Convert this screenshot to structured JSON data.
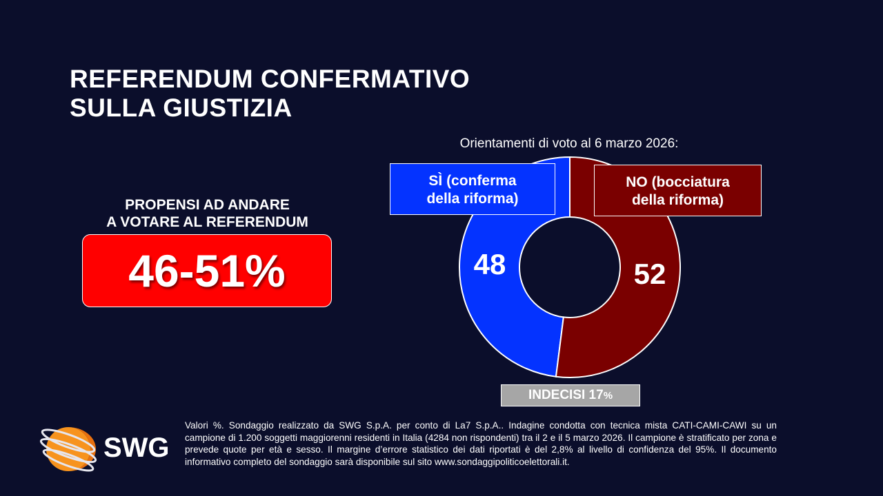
{
  "title": {
    "line1": "REFERENDUM CONFERMATIVO",
    "line2": "SULLA GIUSTIZIA"
  },
  "turnout": {
    "label_line1": "PROPENSI AD ANDARE",
    "label_line2": "A VOTARE AL REFERENDUM",
    "value": "46-51%",
    "color": "#ff0000"
  },
  "chart_data": {
    "type": "pie",
    "subtype": "donut",
    "title": "Orientamenti di voto al 6 marzo 2026:",
    "categories": [
      "SÌ (conferma della riforma)",
      "NO (bocciatura della riforma)"
    ],
    "values": [
      48,
      52
    ],
    "value_labels": [
      "48",
      "52"
    ],
    "colors": [
      "#0433ff",
      "#7a0000"
    ],
    "legend": [
      {
        "line1": "SÌ (conferma",
        "line2": "della riforma)"
      },
      {
        "line1": "NO (bocciatura",
        "line2": "della riforma)"
      }
    ],
    "annotation": {
      "text": "INDECISI 17",
      "unit": "%"
    }
  },
  "footer": {
    "brand": "SWG",
    "note": "Valori %. Sondaggio realizzato da SWG S.p.A. per conto di La7 S.p.A.. Indagine condotta con tecnica mista CATI-CAMI-CAWI su un campione di 1.200 soggetti maggiorenni residenti in Italia (4284 non rispondenti) tra il 2 e il 5 marzo 2026. Il campione è stratificato per zona e prevede quote per età e sesso. Il margine d’errore statistico dei dati riportati è del 2,8% al livello di confidenza del 95%. Il documento informativo completo del sondaggio sarà disponibile sul sito www.sondaggipoliticoelettorali.it."
  }
}
